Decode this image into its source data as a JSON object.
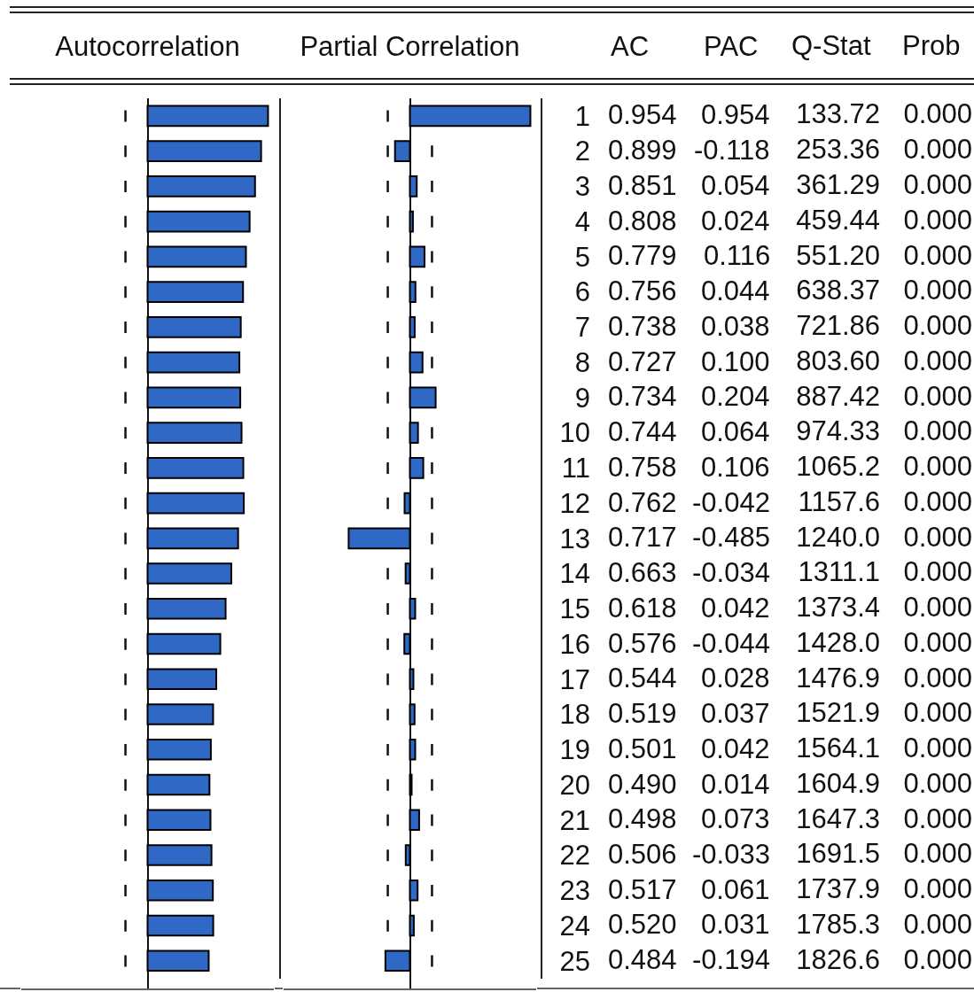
{
  "chart_data": [
    {
      "type": "bar",
      "orientation": "horizontal",
      "title": "Autocorrelation",
      "annotations": [
        "AC"
      ],
      "categories": [
        "1",
        "2",
        "3",
        "4",
        "5",
        "6",
        "7",
        "8",
        "9",
        "10",
        "11",
        "12",
        "13",
        "14",
        "15",
        "16",
        "17",
        "18",
        "19",
        "20",
        "21",
        "22",
        "23",
        "24",
        "25"
      ],
      "values": [
        0.954,
        0.899,
        0.851,
        0.808,
        0.779,
        0.756,
        0.738,
        0.727,
        0.734,
        0.744,
        0.758,
        0.762,
        0.717,
        0.663,
        0.618,
        0.576,
        0.544,
        0.519,
        0.501,
        0.49,
        0.498,
        0.506,
        0.517,
        0.52,
        0.484
      ],
      "value_labels": [
        "0.954",
        "0.899",
        "0.851",
        "0.808",
        "0.779",
        "0.756",
        "0.738",
        "0.727",
        "0.734",
        "0.744",
        "0.758",
        "0.762",
        "0.717",
        "0.663",
        "0.618",
        "0.576",
        "0.544",
        "0.519",
        "0.501",
        "0.490",
        "0.498",
        "0.506",
        "0.517",
        "0.520",
        "0.484"
      ],
      "color": "#3068c6",
      "xlim": [
        -1,
        1
      ],
      "ref_lines": [
        {
          "axis": "x",
          "value": -0.175,
          "line_style": "dashed"
        }
      ],
      "tick_labels": false
    },
    {
      "type": "bar",
      "orientation": "horizontal",
      "title": "Partial Correlation",
      "annotations": [
        "PAC"
      ],
      "categories": [
        "1",
        "2",
        "3",
        "4",
        "5",
        "6",
        "7",
        "8",
        "9",
        "10",
        "11",
        "12",
        "13",
        "14",
        "15",
        "16",
        "17",
        "18",
        "19",
        "20",
        "21",
        "22",
        "23",
        "24",
        "25"
      ],
      "values": [
        0.954,
        -0.118,
        0.054,
        0.024,
        0.116,
        0.044,
        0.038,
        0.1,
        0.204,
        0.064,
        0.106,
        -0.042,
        -0.485,
        -0.034,
        0.042,
        -0.044,
        0.028,
        0.037,
        0.042,
        0.014,
        0.073,
        -0.033,
        0.061,
        0.031,
        -0.194
      ],
      "value_labels": [
        "0.954",
        "-0.118",
        "0.054",
        "0.024",
        "0.116",
        "0.044",
        "0.038",
        "0.100",
        "0.204",
        "0.064",
        "0.106",
        "-0.042",
        "-0.485",
        "-0.034",
        "0.042",
        "-0.044",
        "0.028",
        "0.037",
        "0.042",
        "0.014",
        "0.073",
        "-0.033",
        "0.061",
        "0.031",
        "-0.194"
      ],
      "color": "#3068c6",
      "xlim": [
        -1,
        1
      ],
      "ref_lines": [
        {
          "axis": "x",
          "value": -0.175,
          "line_style": "dashed"
        },
        {
          "axis": "x",
          "value": 0.175,
          "line_style": "dashed"
        }
      ],
      "tick_labels": "y"
    },
    {
      "type": "heatmap",
      "categories": [
        "Q-Stat",
        "Prob"
      ],
      "y_categories": [
        null,
        null,
        null,
        null,
        null,
        null,
        null,
        null,
        null,
        null,
        null,
        null,
        null,
        null,
        null,
        null,
        null,
        null,
        null,
        null,
        null,
        null,
        null,
        null,
        null
      ],
      "cells": [
        [
          133.72,
          0
        ],
        [
          253.36,
          0
        ],
        [
          361.29,
          0
        ],
        [
          459.44,
          0
        ],
        [
          551.2,
          0
        ],
        [
          638.37,
          0
        ],
        [
          721.86,
          0
        ],
        [
          803.6,
          0
        ],
        [
          887.42,
          0
        ],
        [
          974.33,
          0
        ],
        [
          1065.2,
          0
        ],
        [
          1157.6,
          0
        ],
        [
          1240.0,
          0
        ],
        [
          1311.1,
          0
        ],
        [
          1373.4,
          0
        ],
        [
          1428.0,
          0
        ],
        [
          1476.9,
          0
        ],
        [
          1521.9,
          0
        ],
        [
          1564.1,
          0
        ],
        [
          1604.9,
          0
        ],
        [
          1647.3,
          0
        ],
        [
          1691.5,
          0
        ],
        [
          1737.9,
          0
        ],
        [
          1785.3,
          0
        ],
        [
          1826.6,
          0
        ]
      ],
      "cell_labels": [
        [
          "133.72",
          "0.000"
        ],
        [
          "253.36",
          "0.000"
        ],
        [
          "361.29",
          "0.000"
        ],
        [
          "459.44",
          "0.000"
        ],
        [
          "551.20",
          "0.000"
        ],
        [
          "638.37",
          "0.000"
        ],
        [
          "721.86",
          "0.000"
        ],
        [
          "803.60",
          "0.000"
        ],
        [
          "887.42",
          "0.000"
        ],
        [
          "974.33",
          "0.000"
        ],
        [
          "1065.2",
          "0.000"
        ],
        [
          "1157.6",
          "0.000"
        ],
        [
          "1240.0",
          "0.000"
        ],
        [
          "1311.1",
          "0.000"
        ],
        [
          "1373.4",
          "0.000"
        ],
        [
          "1428.0",
          "0.000"
        ],
        [
          "1476.9",
          "0.000"
        ],
        [
          "1521.9",
          "0.000"
        ],
        [
          "1564.1",
          "0.000"
        ],
        [
          "1604.9",
          "0.000"
        ],
        [
          "1647.3",
          "0.000"
        ],
        [
          "1691.5",
          "0.000"
        ],
        [
          "1737.9",
          "0.000"
        ],
        [
          "1785.3",
          "0.000"
        ],
        [
          "1826.6",
          "0.000"
        ]
      ]
    }
  ]
}
